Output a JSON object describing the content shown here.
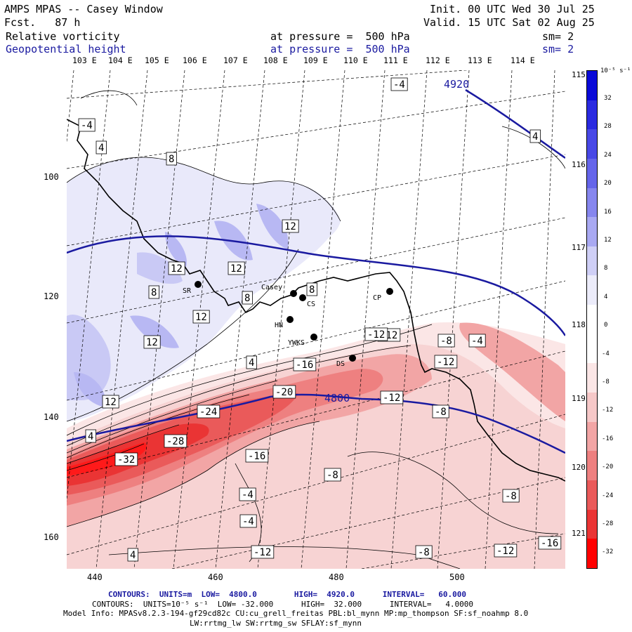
{
  "header": {
    "model": "AMPS MPAS -- Casey Window",
    "fcst": "Fcst.   87 h",
    "init": "Init. 00 UTC Wed 30 Jul 25",
    "valid": "Valid. 15 UTC Sat 02 Aug 25",
    "field1_name": "Relative vorticity",
    "field1_level": "at pressure =  500 hPa",
    "field1_sm": "sm= 2",
    "field2_name": "Geopotential height",
    "field2_level": "at pressure =  500 hPa",
    "field2_sm": "sm= 2"
  },
  "top_longitudes": [
    "103 E",
    "104 E",
    "105 E",
    "106 E",
    "107 E",
    "108 E",
    "109 E",
    "110 E",
    "111 E",
    "112 E",
    "113 E",
    "114 E"
  ],
  "right_longitudes": [
    "115 E",
    "116 E",
    "117 E",
    "118 E",
    "119 E",
    "120 E",
    "121 E"
  ],
  "y_axis": [
    "100",
    "120",
    "140",
    "160"
  ],
  "x_axis": [
    "440",
    "460",
    "480",
    "500"
  ],
  "stations": [
    {
      "name": "Casey",
      "color": "#000000"
    },
    {
      "name": "CS",
      "color": "#000000"
    },
    {
      "name": "CP",
      "color": "#000000"
    },
    {
      "name": "SR",
      "color": "#000000"
    },
    {
      "name": "HN",
      "color": "#000000"
    },
    {
      "name": "YWKS",
      "color": "#000000"
    },
    {
      "name": "DS",
      "color": "#000000"
    }
  ],
  "height_labels": [
    "4920",
    "4800"
  ],
  "vort_labels": [
    "-4",
    "4",
    "-4",
    "4",
    "8",
    "12",
    "12",
    "12",
    "8",
    "8",
    "12",
    "12",
    "12",
    "8",
    "-12",
    "-8",
    "-4",
    "-12",
    "-16",
    "4",
    "-20",
    "-24",
    "-28",
    "-32",
    "-16",
    "-8",
    "-8",
    "-12",
    "-4",
    "-4",
    "-8",
    "-12",
    "-16",
    "-12",
    "-8",
    "-12",
    "4",
    "4"
  ],
  "colorbar": {
    "unit": "10⁻⁵ s⁻¹",
    "ticks": [
      "32",
      "28",
      "24",
      "20",
      "16",
      "12",
      "8",
      "4",
      "0",
      "-4",
      "-8",
      "-12",
      "-16",
      "-20",
      "-24",
      "-28",
      "-32"
    ],
    "colors": [
      "#0a0ad8",
      "#2a2ae0",
      "#4848e6",
      "#6565ea",
      "#8686ee",
      "#a9a9f2",
      "#cfcff6",
      "#ececfa",
      "#ffffff",
      "#ffffff",
      "#fbe6e6",
      "#f6c8c8",
      "#f2a5a5",
      "#ee8080",
      "#ea5a5a",
      "#ea3434",
      "#ff0000"
    ]
  },
  "footer": {
    "line1": "CONTOURS:  UNITS=m  LOW=  4800.0        HIGH=  4920.0      INTERVAL=   60.000",
    "line2": "CONTOURS:  UNITS=10⁻⁵ s⁻¹  LOW= -32.000      HIGH=  32.000      INTERVAL=   4.0000",
    "line3": "Model Info: MPASv8.2.3-194-gf29cd82c CU:cu_grell_freitas PBL:bl_mynn MP:mp_thompson SF:sf_noahmp 8.0",
    "line4": "LW:rrtmg_lw SW:rrtmg_sw SFLAY:sf_mynn"
  },
  "colors": {
    "height_contour": "#1a1aa0",
    "coast": "#000000",
    "grid": "#000000"
  }
}
